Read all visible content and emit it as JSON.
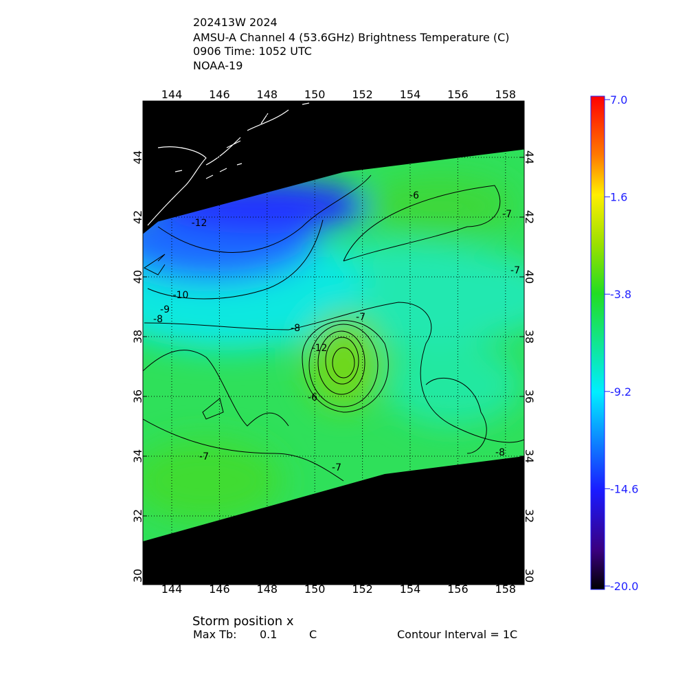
{
  "header": {
    "lines": [
      "202413W 2024",
      "AMSU-A Channel 4 (53.6GHz) Brightness Temperature (C)",
      "0906 Time: 1052 UTC",
      "NOAA-19"
    ]
  },
  "map": {
    "lon_ticks": [
      144,
      146,
      148,
      150,
      152,
      154,
      156,
      158
    ],
    "lat_ticks": [
      30,
      32,
      34,
      36,
      38,
      40,
      42,
      44
    ],
    "contour_labels": [
      "-6",
      "-7",
      "-7",
      "-12",
      "-10",
      "-9",
      "-8",
      "-8",
      "-7",
      "-12",
      "-6",
      "-7",
      "-7",
      "-8"
    ]
  },
  "colorbar": {
    "ticks": [
      {
        "value": 7,
        "label": "7.0"
      },
      {
        "value": 1.6,
        "label": "1.6"
      },
      {
        "value": -3.8,
        "label": "-3.8"
      },
      {
        "value": -9.2,
        "label": "-9.2"
      },
      {
        "value": -14.6,
        "label": "-14.6"
      },
      {
        "value": -20,
        "label": "-20.0"
      }
    ]
  },
  "footer": {
    "storm_position": "Storm position x",
    "max_tb_label": "Max Tb:",
    "max_tb_value": 0.1,
    "max_tb_unit": "C",
    "contour_interval": "Contour Interval = 1C"
  }
}
